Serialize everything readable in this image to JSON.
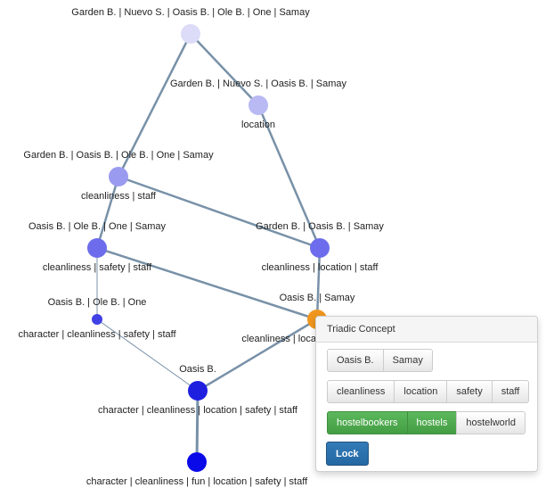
{
  "lattice": {
    "nodes": [
      {
        "id": "n0",
        "extent": "Garden B. | Nuevo S. | Oasis B. | Ole B. | One | Samay",
        "intent": "",
        "color": "#dcdcf8"
      },
      {
        "id": "n1",
        "extent": "Garden B. | Nuevo S. | Oasis B. | Samay",
        "intent": "location",
        "color": "#b9b9f4"
      },
      {
        "id": "n2",
        "extent": "Garden B. | Oasis B. | Ole B. | One | Samay",
        "intent": "cleanliness | staff",
        "color": "#9a9af0"
      },
      {
        "id": "n3",
        "extent": "Oasis B. | Ole B. | One | Samay",
        "intent": "cleanliness | safety | staff",
        "color": "#6c6cec"
      },
      {
        "id": "n4",
        "extent": "Garden B. | Oasis B. | Samay",
        "intent": "cleanliness | location | staff",
        "color": "#6c6cec"
      },
      {
        "id": "n5",
        "extent": "Oasis B. | Ole B. | One",
        "intent": "character | cleanliness | safety | staff",
        "color": "#4040e4"
      },
      {
        "id": "n6",
        "extent": "Oasis B. | Samay",
        "intent": "cleanliness | location | safety | staff",
        "color": "#f0961e"
      },
      {
        "id": "n7",
        "extent": "Oasis B.",
        "intent": "character | cleanliness | location | safety | staff",
        "color": "#1f1fe0"
      },
      {
        "id": "n8",
        "extent": "",
        "intent": "character | cleanliness | fun | location | safety | staff",
        "color": "#0a0ae8"
      }
    ],
    "edges": [
      [
        "n0",
        "n1"
      ],
      [
        "n0",
        "n2"
      ],
      [
        "n1",
        "n4"
      ],
      [
        "n2",
        "n3"
      ],
      [
        "n2",
        "n4"
      ],
      [
        "n3",
        "n5"
      ],
      [
        "n3",
        "n6"
      ],
      [
        "n4",
        "n6"
      ],
      [
        "n5",
        "n7"
      ],
      [
        "n6",
        "n7"
      ],
      [
        "n7",
        "n8"
      ]
    ]
  },
  "panel": {
    "title": "Triadic Concept",
    "extent_buttons": [
      "Oasis B.",
      "Samay"
    ],
    "intent_buttons": [
      "cleanliness",
      "location",
      "safety",
      "staff"
    ],
    "modus_buttons": [
      {
        "label": "hostelbookers",
        "active": false
      },
      {
        "label": "hostels",
        "active": true
      },
      {
        "label": "hostelworld",
        "active": true
      }
    ],
    "lock_label": "Lock"
  }
}
